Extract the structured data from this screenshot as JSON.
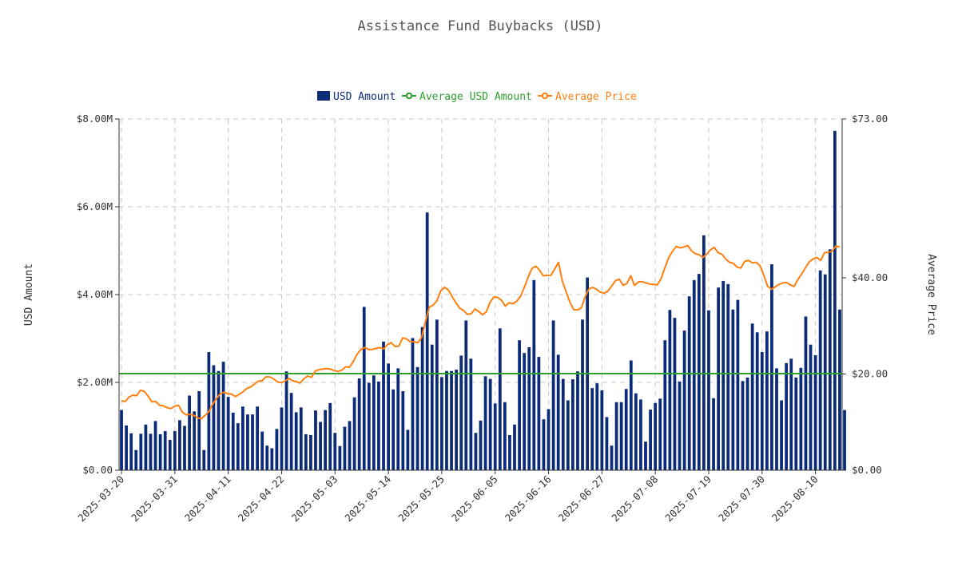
{
  "chart_data": {
    "type": "bar",
    "title": "Assistance Fund Buybacks (USD)",
    "ylabel": "USD Amount",
    "y2label": "Average Price",
    "legend": {
      "placement": "top-center",
      "items": [
        {
          "key": "bars",
          "label": "USD Amount",
          "color": "#0b2a78",
          "marker": "square"
        },
        {
          "key": "avg",
          "label": "Average USD Amount",
          "color": "#2ca02c",
          "marker": "line-circle"
        },
        {
          "key": "price",
          "label": "Average Price",
          "color": "#ff7f0e",
          "marker": "line-circle"
        }
      ]
    },
    "x_ticks": [
      "2025-03-20",
      "2025-03-31",
      "2025-04-11",
      "2025-04-22",
      "2025-05-03",
      "2025-05-14",
      "2025-05-25",
      "2025-06-05",
      "2025-06-16",
      "2025-06-27",
      "2025-07-08",
      "2025-07-19",
      "2025-07-30",
      "2025-08-10"
    ],
    "y_ticks": [
      "$0.00",
      "$2.00M",
      "$4.00M",
      "$6.00M",
      "$8.00M"
    ],
    "y2_ticks": [
      "$0.00",
      "$20.00",
      "$40.00",
      "$73.00"
    ],
    "ylim": [
      0,
      8000000
    ],
    "y2lim": [
      0,
      73
    ],
    "grid": true,
    "start_date": "2025-03-20",
    "end_date": "2025-08-15",
    "average_usd_amount": 2200000,
    "series": [
      {
        "name": "USD Amount",
        "type": "bar",
        "color": "#0b2a78",
        "values": [
          1.37,
          1.02,
          0.84,
          0.46,
          0.83,
          1.04,
          0.83,
          1.12,
          0.82,
          0.89,
          0.69,
          0.89,
          1.14,
          1.01,
          1.7,
          1.34,
          1.8,
          0.46,
          2.69,
          2.39,
          2.26,
          2.47,
          1.67,
          1.31,
          1.07,
          1.45,
          1.27,
          1.27,
          1.45,
          0.88,
          0.56,
          0.5,
          0.94,
          1.43,
          2.25,
          1.76,
          1.32,
          1.43,
          0.82,
          0.8,
          1.36,
          1.1,
          1.37,
          1.53,
          0.85,
          0.55,
          0.99,
          1.12,
          1.66,
          2.09,
          3.72,
          1.99,
          2.16,
          2.02,
          2.93,
          2.43,
          1.84,
          2.32,
          1.8,
          0.92,
          3.01,
          2.35,
          3.26,
          5.87,
          2.86,
          3.43,
          2.12,
          2.26,
          2.26,
          2.29,
          2.61,
          3.41,
          2.54,
          0.85,
          1.13,
          2.14,
          2.08,
          1.52,
          3.23,
          1.55,
          0.8,
          1.04,
          2.96,
          2.67,
          2.8,
          4.33,
          2.58,
          1.16,
          1.39,
          3.41,
          2.63,
          2.08,
          1.59,
          2.07,
          2.25,
          3.43,
          4.39,
          1.87,
          1.98,
          1.82,
          1.21,
          0.56,
          1.55,
          1.55,
          1.85,
          2.5,
          1.75,
          1.61,
          0.65,
          1.38,
          1.53,
          1.63,
          2.96,
          3.65,
          3.47,
          2.02,
          3.18,
          3.96,
          4.33,
          4.47,
          5.35,
          3.64,
          1.64,
          4.16,
          4.31,
          4.24,
          3.66,
          3.88,
          2.03,
          2.11,
          3.34,
          3.14,
          2.69,
          3.16,
          4.69,
          2.32,
          1.59,
          2.44,
          2.54,
          2.11,
          2.33,
          3.5,
          2.86,
          2.62,
          4.55,
          4.46,
          5.03,
          7.73,
          3.66,
          1.37
        ]
      },
      {
        "name": "Average Price",
        "type": "line",
        "axis": "right",
        "color": "#ff7f0e",
        "values": [
          14.4,
          14.3,
          15.2,
          15.6,
          15.5,
          16.6,
          16.4,
          15.4,
          14.2,
          14.3,
          13.5,
          13.4,
          13.0,
          12.8,
          13.3,
          13.5,
          12.1,
          11.5,
          11.6,
          11.4,
          10.9,
          10.7,
          11.4,
          12.2,
          13.7,
          14.9,
          15.9,
          16.2,
          15.9,
          15.8,
          15.3,
          15.8,
          16.3,
          17.0,
          17.3,
          17.9,
          18.5,
          18.6,
          19.4,
          19.4,
          19.0,
          18.4,
          18.2,
          18.5,
          19.1,
          18.6,
          18.4,
          18.1,
          19.0,
          19.6,
          19.3,
          20.6,
          20.9,
          21.0,
          21.1,
          21.0,
          20.7,
          20.5,
          20.8,
          21.5,
          21.4,
          22.6,
          24.1,
          25.1,
          25.5,
          25.1,
          25.1,
          25.3,
          25.5,
          25.2,
          26.1,
          26.5,
          25.7,
          25.8,
          27.5,
          27.3,
          26.7,
          26.7,
          26.5,
          27.6,
          30.9,
          33.9,
          34.3,
          35.2,
          37.3,
          38.0,
          37.5,
          36.1,
          34.8,
          33.7,
          33.2,
          32.4,
          32.5,
          33.5,
          33.0,
          32.3,
          32.9,
          34.9,
          36.0,
          35.9,
          35.3,
          34.1,
          34.8,
          34.6,
          35.1,
          36.1,
          38.0,
          40.1,
          41.9,
          42.4,
          41.6,
          40.4,
          40.5,
          40.5,
          41.8,
          43.2,
          39.3,
          37.1,
          34.9,
          33.4,
          33.3,
          33.7,
          36.0,
          37.7,
          38.0,
          37.6,
          37.0,
          36.8,
          37.2,
          38.3,
          39.4,
          39.7,
          38.4,
          38.8,
          40.4,
          38.4,
          39.1,
          39.2,
          38.9,
          38.7,
          38.6,
          38.5,
          39.8,
          42.1,
          44.2,
          45.5,
          46.5,
          46.2,
          46.4,
          46.7,
          45.6,
          45.0,
          44.8,
          44.2,
          44.9,
          45.8,
          46.3,
          45.2,
          44.9,
          43.9,
          43.2,
          43.0,
          42.2,
          42.0,
          43.4,
          43.6,
          43.1,
          43.2,
          42.5,
          40.6,
          38.3,
          37.6,
          38.1,
          38.6,
          38.9,
          39.0,
          38.5,
          38.2,
          39.6,
          40.8,
          42.1,
          43.3,
          43.9,
          44.2,
          43.6,
          45.2,
          45.3,
          45.5,
          46.6,
          46.4
        ]
      }
    ]
  }
}
